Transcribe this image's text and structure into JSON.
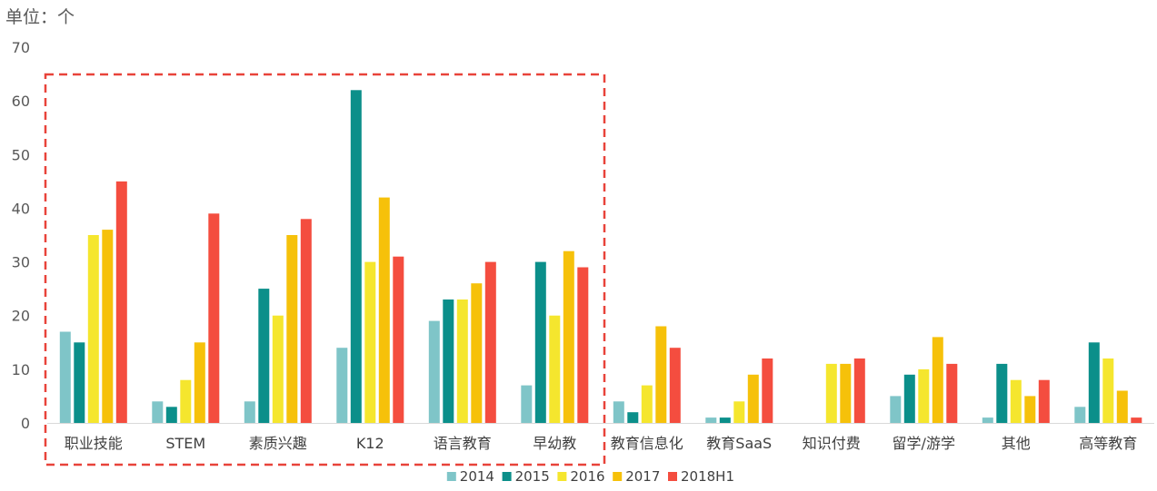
{
  "chart_data": {
    "type": "bar",
    "unit_label": "单位：个",
    "categories": [
      "职业技能",
      "STEM",
      "素质兴趣",
      "K12",
      "语言教育",
      "早幼教",
      "教育信息化",
      "教育SaaS",
      "知识付费",
      "留学/游学",
      "其他",
      "高等教育"
    ],
    "series": [
      {
        "name": "2014",
        "color": "#7fc5c8",
        "values": [
          17,
          4,
          4,
          14,
          19,
          7,
          4,
          1,
          0,
          5,
          1,
          3
        ]
      },
      {
        "name": "2015",
        "color": "#0b8f8a",
        "values": [
          15,
          3,
          25,
          62,
          23,
          30,
          2,
          1,
          0,
          9,
          11,
          15
        ]
      },
      {
        "name": "2016",
        "color": "#f5e62e",
        "values": [
          35,
          8,
          20,
          30,
          23,
          20,
          7,
          4,
          11,
          10,
          8,
          12
        ]
      },
      {
        "name": "2017",
        "color": "#f6c10a",
        "values": [
          36,
          15,
          35,
          42,
          26,
          32,
          18,
          9,
          11,
          16,
          5,
          6
        ]
      },
      {
        "name": "2018H1",
        "color": "#f44d3f",
        "values": [
          45,
          39,
          38,
          31,
          30,
          29,
          14,
          12,
          12,
          11,
          8,
          1
        ]
      }
    ],
    "ylim": [
      0,
      70
    ],
    "yticks": [
      0,
      10,
      20,
      30,
      40,
      50,
      60,
      70
    ],
    "grid": false,
    "legend_position": "bottom",
    "highlight_box": {
      "from_category": "职业技能",
      "to_category": "早幼教",
      "color": "#e8433a",
      "style": "dashed"
    }
  }
}
